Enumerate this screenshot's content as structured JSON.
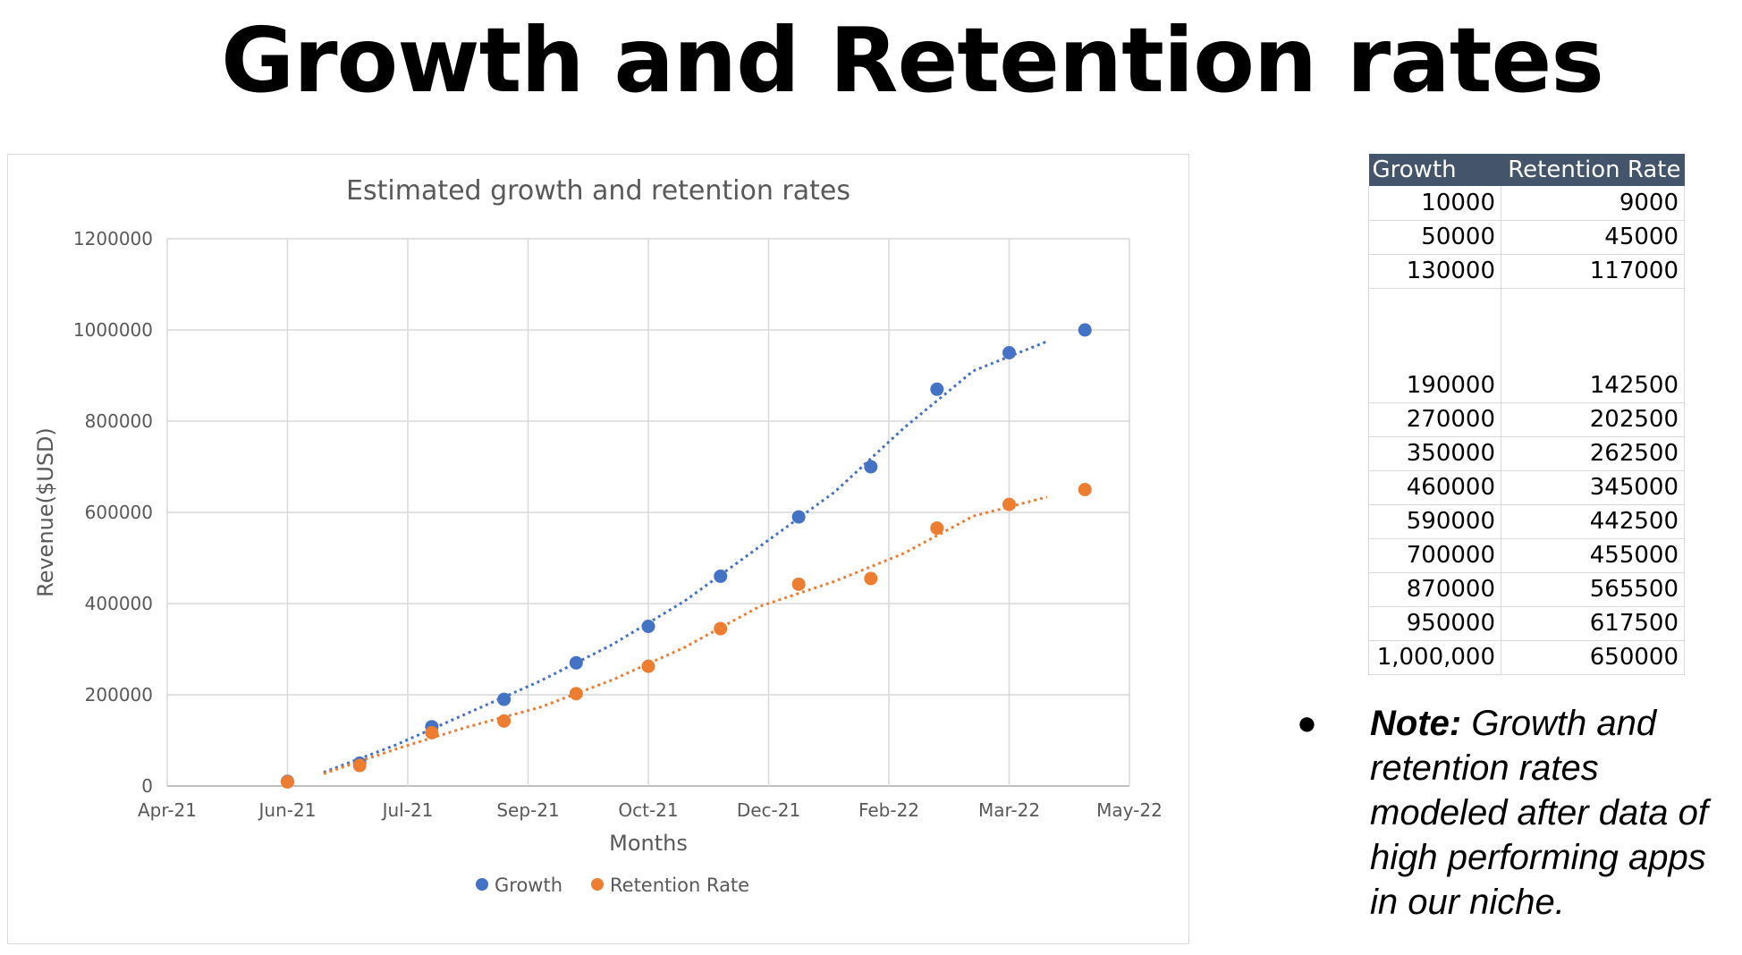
{
  "slide": {
    "title": "Growth and Retention rates"
  },
  "chart_data": {
    "type": "scatter",
    "title": "Estimated growth and retention rates",
    "xlabel": "Months",
    "ylabel": "Revenue($USD)",
    "x_tick_labels": [
      "Apr-21",
      "Jun-21",
      "Jul-21",
      "Sep-21",
      "Oct-21",
      "Dec-21",
      "Feb-22",
      "Mar-22",
      "May-22"
    ],
    "y_tick_labels": [
      "0",
      "200000",
      "400000",
      "600000",
      "800000",
      "1000000",
      "1200000"
    ],
    "ylim": [
      0,
      1200000
    ],
    "grid": true,
    "legend_position": "bottom",
    "trendlines": "dotted moving average per series",
    "series": [
      {
        "name": "Growth",
        "color": "#4472c4",
        "points": [
          {
            "x": "Jun-21",
            "y": 10000
          },
          {
            "x": "Jun-21 + 1mo",
            "y": 50000
          },
          {
            "x": "Jul-21 + 1mo",
            "y": 130000
          },
          {
            "x": "Sep-21",
            "y": 190000
          },
          {
            "x": "Sep-21 + 1mo",
            "y": 270000
          },
          {
            "x": "Oct-21",
            "y": 350000
          },
          {
            "x": "Nov-21",
            "y": 460000
          },
          {
            "x": "Dec-21",
            "y": 590000
          },
          {
            "x": "Jan-22",
            "y": 700000
          },
          {
            "x": "Feb-22",
            "y": 870000
          },
          {
            "x": "Mar-22",
            "y": 950000
          },
          {
            "x": "Apr-22",
            "y": 1000000
          }
        ]
      },
      {
        "name": "Retention Rate",
        "color": "#ed7d31",
        "points": [
          {
            "x": "Jun-21",
            "y": 9000
          },
          {
            "x": "Jun-21 + 1mo",
            "y": 45000
          },
          {
            "x": "Jul-21 + 1mo",
            "y": 117000
          },
          {
            "x": "Sep-21",
            "y": 142500
          },
          {
            "x": "Sep-21 + 1mo",
            "y": 202500
          },
          {
            "x": "Oct-21",
            "y": 262500
          },
          {
            "x": "Nov-21",
            "y": 345000
          },
          {
            "x": "Dec-21",
            "y": 442500
          },
          {
            "x": "Jan-22",
            "y": 455000
          },
          {
            "x": "Feb-22",
            "y": 565500
          },
          {
            "x": "Mar-22",
            "y": 617500
          },
          {
            "x": "Apr-22",
            "y": 650000
          }
        ]
      }
    ]
  },
  "table": {
    "headers": [
      "Growth",
      "Retention Rate"
    ],
    "rows_top": [
      [
        "10000",
        "9000"
      ],
      [
        "50000",
        "45000"
      ],
      [
        "130000",
        "117000"
      ]
    ],
    "rows_bottom": [
      [
        "190000",
        "142500"
      ],
      [
        "270000",
        "202500"
      ],
      [
        "350000",
        "262500"
      ],
      [
        "460000",
        "345000"
      ],
      [
        "590000",
        "442500"
      ],
      [
        "700000",
        "455000"
      ],
      [
        "870000",
        "565500"
      ],
      [
        "950000",
        "617500"
      ],
      [
        "1,000,000",
        "650000"
      ]
    ]
  },
  "note": {
    "bullet": "●",
    "label": "Note:",
    "text": " Growth and retention rates modeled after data of high performing apps in our niche."
  }
}
